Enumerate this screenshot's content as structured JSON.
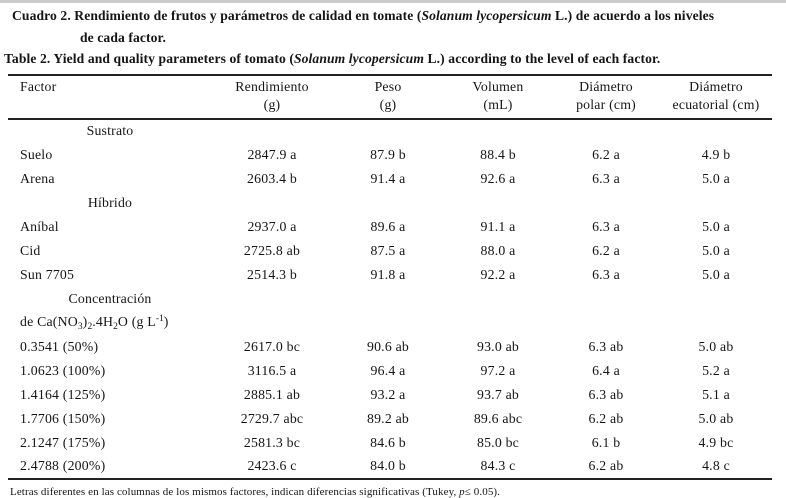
{
  "caption": {
    "es_line1_pre": "Cuadro 2. Rendimiento de frutos y parámetros de calidad en tomate (",
    "es_species": "Solanum lycopersicum",
    "es_line1_post": " L.) de acuerdo a los niveles",
    "es_line2": "de cada factor.",
    "en_pre": "Table 2. Yield and quality parameters of tomato (",
    "en_species": "Solanum lycopersicum",
    "en_post": " L.) according to the level of each factor."
  },
  "table": {
    "headers": [
      {
        "line1": "Factor",
        "line2": ""
      },
      {
        "line1": "Rendimiento",
        "line2": "(g)"
      },
      {
        "line1": "Peso",
        "line2": "(g)"
      },
      {
        "line1": "Volumen",
        "line2": "(mL)"
      },
      {
        "line1": "Diámetro",
        "line2": "polar (cm)"
      },
      {
        "line1": "Diámetro",
        "line2": "ecuatorial (cm)"
      }
    ],
    "rows": [
      {
        "type": "group",
        "factor": "Sustrato"
      },
      {
        "type": "data",
        "factor": "Suelo",
        "values": [
          "2847.9 a",
          "87.9 b",
          "88.4 b",
          "6.2 a",
          "4.9 b"
        ]
      },
      {
        "type": "data",
        "factor": "Arena",
        "values": [
          "2603.4 b",
          "91.4 a",
          "92.6 a",
          "6.3 a",
          "5.0 a"
        ]
      },
      {
        "type": "group",
        "factor": "Híbrido"
      },
      {
        "type": "data",
        "factor": "Aníbal",
        "values": [
          "2937.0 a",
          "89.6 a",
          "91.1 a",
          "6.3 a",
          "5.0 a"
        ]
      },
      {
        "type": "data",
        "factor": "Cid",
        "values": [
          "2725.8 ab",
          "87.5 a",
          "88.0 a",
          "6.2 a",
          "5.0 a"
        ]
      },
      {
        "type": "data",
        "factor": "Sun 7705",
        "values": [
          "2514.3 b",
          "91.8 a",
          "92.2 a",
          "6.3 a",
          "5.0 a"
        ]
      },
      {
        "type": "group",
        "factor": "Concentración"
      },
      {
        "type": "formula",
        "tokens": [
          {
            "t": "de Ca(NO"
          },
          {
            "sub": "3"
          },
          {
            "t": ")"
          },
          {
            "sub": "2"
          },
          {
            "t": ".4H"
          },
          {
            "sub": "2"
          },
          {
            "t": "O (g L"
          },
          {
            "sup": "-1"
          },
          {
            "t": ")"
          }
        ]
      },
      {
        "type": "data",
        "factor": "0.3541 (50%)",
        "values": [
          "2617.0 bc",
          "90.6 ab",
          "93.0 ab",
          "6.3 ab",
          "5.0 ab"
        ]
      },
      {
        "type": "data",
        "factor": "1.0623 (100%)",
        "values": [
          "3116.5 a",
          "96.4 a",
          "97.2 a",
          "6.4 a",
          "5.2 a"
        ]
      },
      {
        "type": "data",
        "factor": "1.4164 (125%)",
        "values": [
          "2885.1 ab",
          "93.2 a",
          "93.7 ab",
          "6.3 ab",
          "5.1 a"
        ]
      },
      {
        "type": "data",
        "factor": "1.7706 (150%)",
        "values": [
          "2729.7 abc",
          "89.2 ab",
          "89.6 abc",
          "6.2 ab",
          "5.0 ab"
        ]
      },
      {
        "type": "data",
        "factor": "2.1247 (175%)",
        "values": [
          "2581.3 bc",
          "84.6 b",
          "85.0 bc",
          "6.1 b",
          "4.9 bc"
        ]
      },
      {
        "type": "data",
        "factor": "2.4788 (200%)",
        "values": [
          "2423.6 c",
          "84.0 b",
          "84.3 c",
          "6.2 ab",
          "4.8 c"
        ]
      }
    ]
  },
  "footnote": {
    "pre": "Letras diferentes en las columnas de los mismos factores, indican diferencias significativas (Tukey, ",
    "p_symbol": "p",
    "post": "≤ 0.05)."
  },
  "colors": {
    "background": "#ffffff",
    "text": "#151515",
    "rule": "#222222",
    "scan_artifact": "#cccccc"
  }
}
